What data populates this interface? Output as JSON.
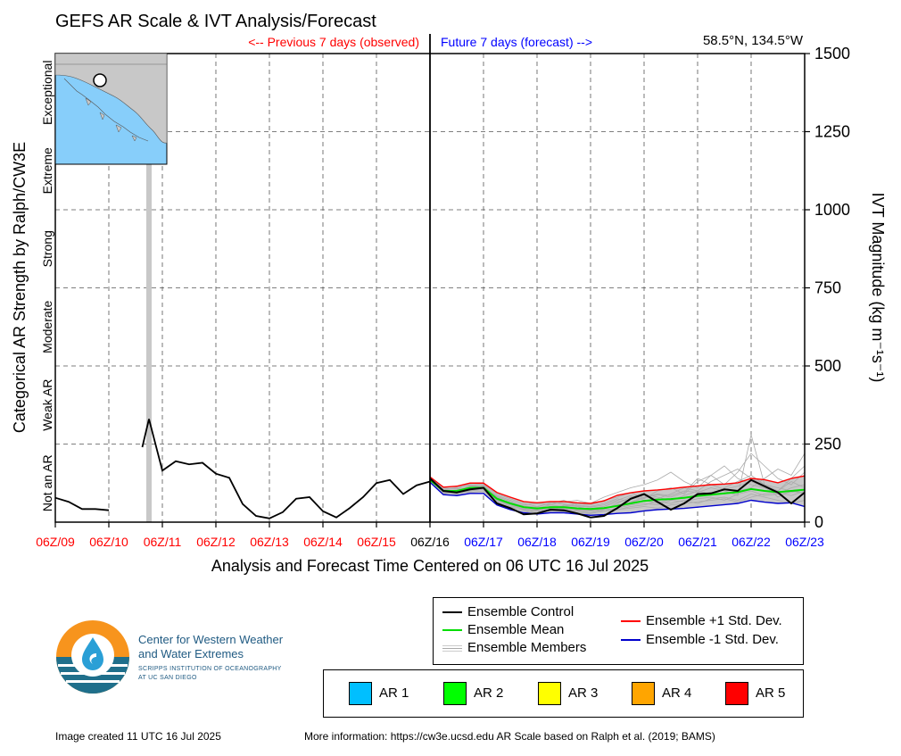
{
  "header": {
    "title": "GEFS AR Scale & IVT Analysis/Forecast",
    "previous_label": "<-- Previous 7 days (observed)",
    "future_label": "Future 7 days (forecast) -->",
    "location": "58.5°N, 134.5°W"
  },
  "colors": {
    "observed_text": "#ff0000",
    "forecast_text": "#0000ff",
    "control": "#000000",
    "mean": "#00dd00",
    "plus_std": "#ff0000",
    "minus_std": "#0000cc",
    "members": "#aaaaaa",
    "spread": "#c8c8c8",
    "land": "#c8c8c8",
    "ocean": "#87cefa"
  },
  "chart_data": {
    "type": "line",
    "title": "GEFS AR Scale & IVT Analysis/Forecast",
    "xlabel": "Analysis and Forecast Time Centered on 06 UTC 16 Jul 2025",
    "ylabel_right": "IVT Magnitude (kg m⁻¹s⁻¹)",
    "ylabel_left": "Categorical AR Strength by Ralph/CW3E",
    "ylim": [
      0,
      1500
    ],
    "xlim": [
      0,
      14
    ],
    "grid": true,
    "y_ticks": [
      0,
      250,
      500,
      750,
      1000,
      1250,
      1500
    ],
    "y_tick_labels": [
      "0",
      "250",
      "500",
      "750",
      "1000",
      "1250",
      "1500"
    ],
    "x_ticks": [
      0,
      1,
      2,
      3,
      4,
      5,
      6,
      7,
      8,
      9,
      10,
      11,
      12,
      13,
      14
    ],
    "x_tick_labels": [
      "06Z/09",
      "06Z/10",
      "06Z/11",
      "06Z/12",
      "06Z/13",
      "06Z/14",
      "06Z/15",
      "06Z/16",
      "06Z/17",
      "06Z/18",
      "06Z/19",
      "06Z/20",
      "06Z/21",
      "06Z/22",
      "06Z/23"
    ],
    "x_tick_groups": [
      "observed",
      "observed",
      "observed",
      "observed",
      "observed",
      "observed",
      "observed",
      "present",
      "forecast",
      "forecast",
      "forecast",
      "forecast",
      "forecast",
      "forecast",
      "forecast"
    ],
    "categories_left": [
      {
        "label": "Not an AR",
        "from": 0,
        "to": 250
      },
      {
        "label": "Weak AR",
        "from": 250,
        "to": 500
      },
      {
        "label": "Moderate",
        "from": 500,
        "to": 750
      },
      {
        "label": "Strong",
        "from": 750,
        "to": 1000
      },
      {
        "label": "Extreme",
        "from": 1000,
        "to": 1250
      },
      {
        "label": "Exceptional",
        "from": 1250,
        "to": 1500
      }
    ],
    "observed_gap_shading": [
      1.7,
      1.8
    ],
    "observed": [
      {
        "name": "Ensemble Control",
        "x": [
          0,
          0.25,
          0.5,
          0.75,
          1.0
        ],
        "y": [
          78,
          65,
          42,
          42,
          38
        ]
      },
      {
        "name": "Ensemble Control",
        "x": [
          1.625,
          1.75,
          2.0,
          2.25,
          2.5,
          2.75,
          3.0,
          3.25,
          3.5,
          3.75,
          4.0,
          4.25,
          4.5,
          4.75,
          5.0,
          5.25,
          5.5,
          5.75,
          6.0,
          6.25,
          6.5,
          6.75,
          7.0
        ],
        "y": [
          240,
          330,
          165,
          195,
          185,
          190,
          155,
          142,
          58,
          20,
          12,
          32,
          75,
          80,
          35,
          15,
          45,
          80,
          125,
          135,
          90,
          118,
          130
        ]
      }
    ],
    "forecast_x": [
      7.0,
      7.25,
      7.5,
      7.75,
      8.0,
      8.25,
      8.5,
      8.75,
      9.0,
      9.25,
      9.5,
      9.75,
      10.0,
      10.25,
      10.5,
      10.75,
      11.0,
      11.25,
      11.5,
      11.75,
      12.0,
      12.25,
      12.5,
      12.75,
      13.0,
      13.25,
      13.5,
      13.75,
      14.0
    ],
    "series": [
      {
        "name": "Ensemble Control",
        "y": [
          140,
          100,
          95,
          105,
          110,
          60,
          45,
          25,
          28,
          40,
          38,
          28,
          15,
          20,
          45,
          75,
          90,
          65,
          40,
          60,
          90,
          92,
          105,
          100,
          135,
          115,
          95,
          60,
          95
        ]
      },
      {
        "name": "Ensemble Mean",
        "y": [
          135,
          100,
          100,
          110,
          110,
          75,
          60,
          48,
          44,
          48,
          48,
          44,
          42,
          45,
          52,
          60,
          68,
          72,
          74,
          78,
          84,
          88,
          92,
          96,
          106,
          100,
          96,
          100,
          104
        ]
      },
      {
        "name": "Ensemble +1 Std. Dev.",
        "y": [
          145,
          112,
          115,
          125,
          125,
          95,
          80,
          66,
          62,
          66,
          66,
          62,
          60,
          68,
          86,
          94,
          100,
          103,
          107,
          112,
          116,
          120,
          122,
          126,
          140,
          136,
          126,
          140,
          148
        ]
      },
      {
        "name": "Ensemble -1 Std. Dev.",
        "y": [
          128,
          88,
          85,
          92,
          92,
          55,
          40,
          30,
          26,
          30,
          30,
          26,
          22,
          24,
          28,
          30,
          36,
          40,
          42,
          44,
          48,
          52,
          56,
          60,
          70,
          64,
          60,
          62,
          50
        ]
      }
    ],
    "members": [
      {
        "y": [
          135,
          95,
          90,
          100,
          105,
          70,
          55,
          40,
          38,
          45,
          40,
          35,
          30,
          40,
          60,
          80,
          90,
          80,
          70,
          85,
          100,
          90,
          110,
          130,
          150,
          120,
          100,
          140,
          180
        ]
      },
      {
        "y": [
          140,
          105,
          110,
          120,
          115,
          80,
          60,
          50,
          45,
          55,
          50,
          60,
          55,
          70,
          80,
          95,
          75,
          100,
          110,
          90,
          130,
          150,
          120,
          160,
          220,
          180,
          140,
          120,
          160
        ]
      },
      {
        "y": [
          130,
          90,
          100,
          95,
          100,
          65,
          45,
          30,
          40,
          35,
          55,
          50,
          40,
          35,
          45,
          55,
          60,
          55,
          70,
          65,
          75,
          80,
          70,
          90,
          100,
          85,
          90,
          110,
          120
        ]
      },
      {
        "y": [
          142,
          110,
          105,
          125,
          120,
          90,
          75,
          60,
          50,
          60,
          70,
          55,
          50,
          60,
          75,
          65,
          80,
          90,
          85,
          100,
          95,
          110,
          100,
          85,
          280,
          120,
          80,
          100,
          90
        ]
      },
      {
        "y": [
          128,
          92,
          95,
          100,
          108,
          70,
          50,
          45,
          35,
          40,
          45,
          38,
          35,
          42,
          40,
          50,
          55,
          65,
          60,
          70,
          60,
          75,
          80,
          70,
          90,
          80,
          70,
          60,
          70
        ]
      },
      {
        "y": [
          138,
          98,
          102,
          115,
          112,
          85,
          70,
          55,
          60,
          55,
          65,
          70,
          60,
          80,
          95,
          110,
          120,
          135,
          160,
          130,
          110,
          150,
          180,
          140,
          120,
          110,
          100,
          130,
          110
        ]
      },
      {
        "y": [
          132,
          102,
          98,
          108,
          104,
          60,
          48,
          38,
          30,
          38,
          35,
          30,
          28,
          35,
          40,
          45,
          50,
          45,
          55,
          60,
          65,
          70,
          75,
          65,
          80,
          90,
          95,
          85,
          100
        ]
      },
      {
        "y": [
          144,
          96,
          92,
          112,
          118,
          78,
          62,
          52,
          48,
          62,
          58,
          52,
          48,
          55,
          70,
          85,
          70,
          60,
          75,
          80,
          85,
          95,
          90,
          100,
          110,
          140,
          170,
          150,
          220
        ]
      },
      {
        "y": [
          136,
          104,
          108,
          102,
          106,
          72,
          58,
          42,
          40,
          44,
          42,
          40,
          38,
          44,
          55,
          62,
          78,
          88,
          80,
          95,
          140,
          120,
          105,
          115,
          130,
          110,
          90,
          95,
          105
        ]
      },
      {
        "y": [
          134,
          100,
          96,
          118,
          114,
          82,
          66,
          48,
          42,
          50,
          52,
          46,
          44,
          50,
          65,
          72,
          85,
          75,
          90,
          110,
          100,
          130,
          150,
          170,
          140,
          120,
          110,
          100,
          95
        ]
      }
    ]
  },
  "legend": {
    "lines": [
      {
        "label": "Ensemble Control",
        "color": "#000000"
      },
      {
        "label": "Ensemble Mean",
        "color": "#00dd00"
      },
      {
        "label": "Ensemble Members",
        "color": "#aaaaaa"
      },
      {
        "label": "Ensemble +1 Std. Dev.",
        "color": "#ff0000"
      },
      {
        "label": "Ensemble -1 Std. Dev.",
        "color": "#0000cc"
      }
    ],
    "ar_scale": [
      {
        "label": "AR 1",
        "color": "#00bfff"
      },
      {
        "label": "AR 2",
        "color": "#00ff00"
      },
      {
        "label": "AR 3",
        "color": "#ffff00"
      },
      {
        "label": "AR 4",
        "color": "#ffa500"
      },
      {
        "label": "AR 5",
        "color": "#ff0000"
      }
    ]
  },
  "logo": {
    "line1": "Center for Western Weather",
    "line2": "and Water Extremes",
    "line3": "SCRIPPS INSTITUTION OF OCEANOGRAPHY",
    "line4": "AT UC SAN DIEGO"
  },
  "footer": {
    "created": "Image created 11 UTC 16 Jul 2025",
    "info": "More information: https://cw3e.ucsd.edu AR Scale based on Ralph et al. (2019; BAMS)"
  }
}
